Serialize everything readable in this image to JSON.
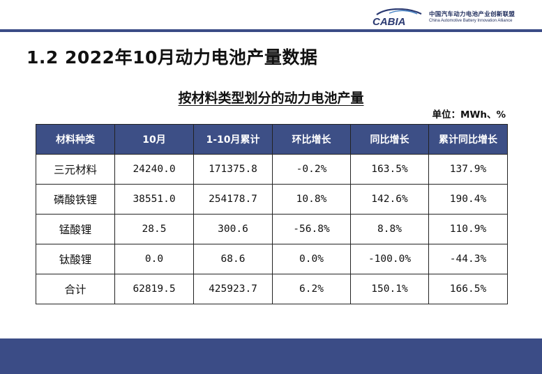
{
  "brand": {
    "logo_text": "CABIA",
    "name_cn": "中国汽车动力电池产业创新联盟",
    "name_en": "China Automotive Battery Innovation Alliance",
    "color": "#3b4c86"
  },
  "slide": {
    "title": "1.2  2022年10月动力电池产量数据"
  },
  "table": {
    "title": "按材料类型划分的动力电池产量",
    "unit": "单位：MWh、%",
    "header_color": "#3d4f86",
    "headers": [
      "材料种类",
      "10月",
      "1-10月累计",
      "环比增长",
      "同比增长",
      "累计同比增长"
    ],
    "rows": [
      [
        "三元材料",
        "24240.0",
        "171375.8",
        "-0.2%",
        "163.5%",
        "137.9%"
      ],
      [
        "磷酸铁锂",
        "38551.0",
        "254178.7",
        "10.8%",
        "142.6%",
        "190.4%"
      ],
      [
        "锰酸锂",
        "28.5",
        "300.6",
        "-56.8%",
        "8.8%",
        "110.9%"
      ],
      [
        "钛酸锂",
        "0.0",
        "68.6",
        "0.0%",
        "-100.0%",
        "-44.3%"
      ],
      [
        "合计",
        "62819.5",
        "425923.7",
        "6.2%",
        "150.1%",
        "166.5%"
      ]
    ]
  }
}
